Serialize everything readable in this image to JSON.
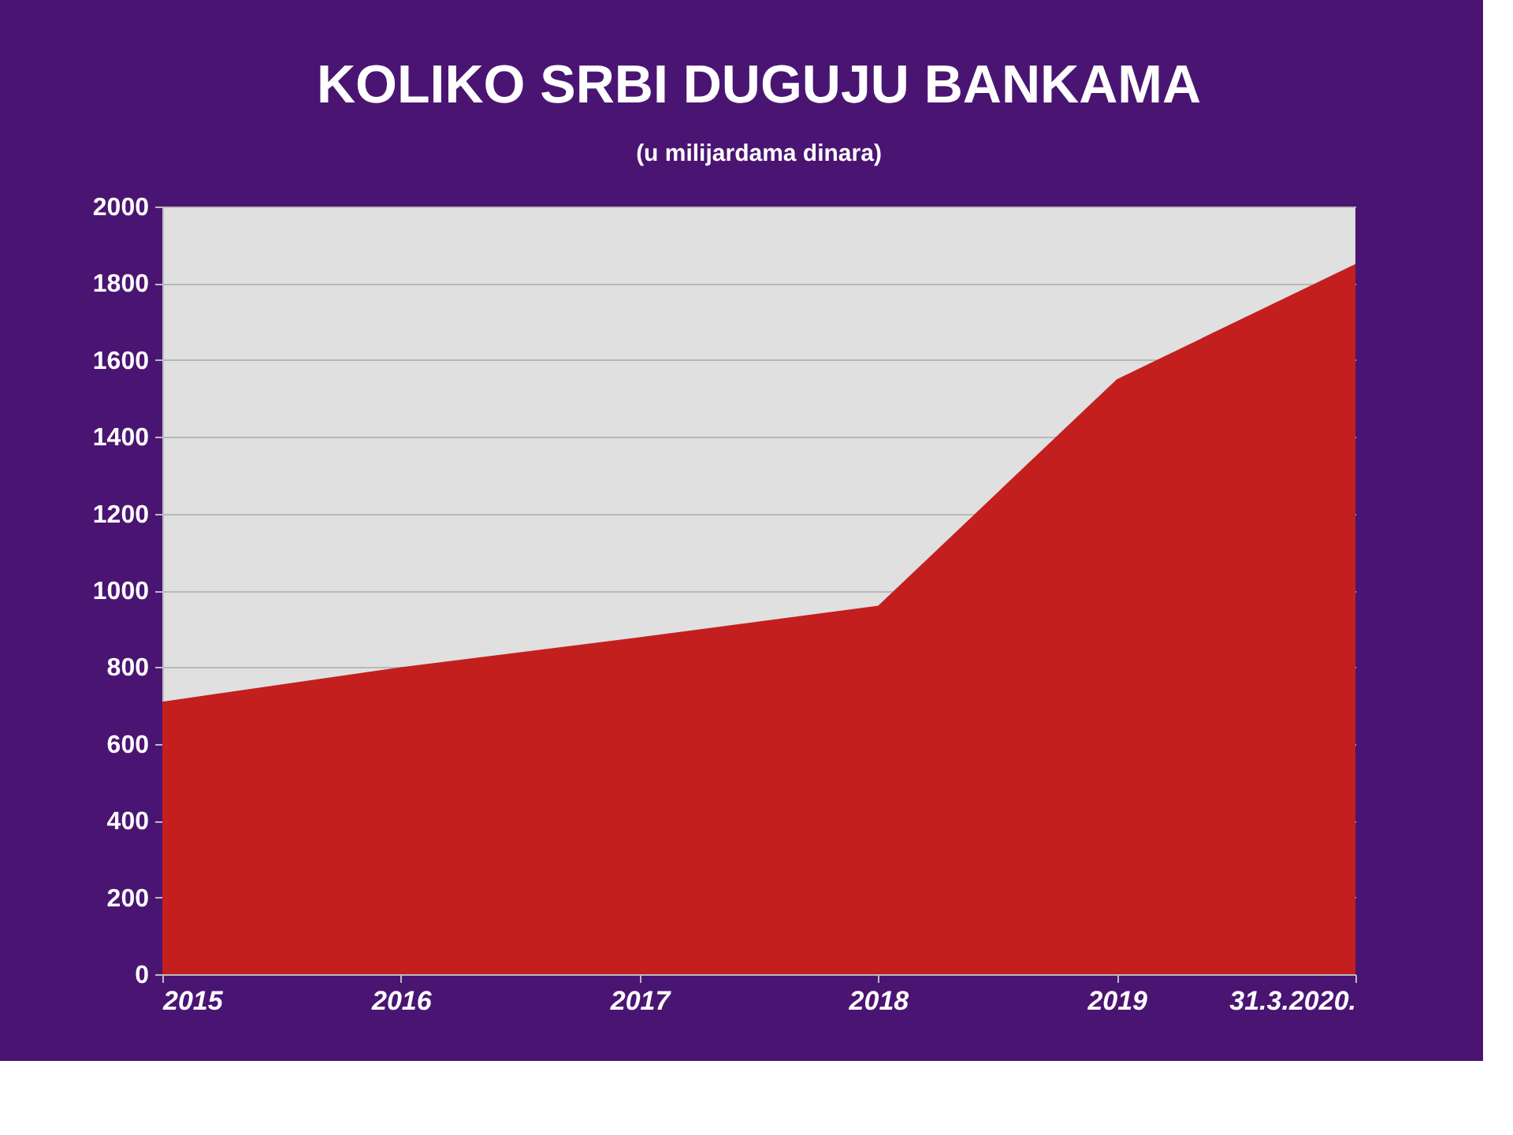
{
  "chart_data": {
    "type": "area",
    "title": "KOLIKO SRBI DUGUJU BANKAMA",
    "subtitle": "(u milijardama dinara)",
    "categories": [
      "2015",
      "2016",
      "2017",
      "2018",
      "2019",
      "31.3.2020."
    ],
    "series": [
      {
        "color": "#c41f1f",
        "values": [
          710,
          800,
          878,
          960,
          1550,
          1850
        ]
      }
    ],
    "ylim": [
      0,
      2000
    ],
    "yticks": [
      0,
      200,
      400,
      600,
      800,
      1000,
      1200,
      1400,
      1600,
      1800,
      2000
    ],
    "grid": "y"
  }
}
